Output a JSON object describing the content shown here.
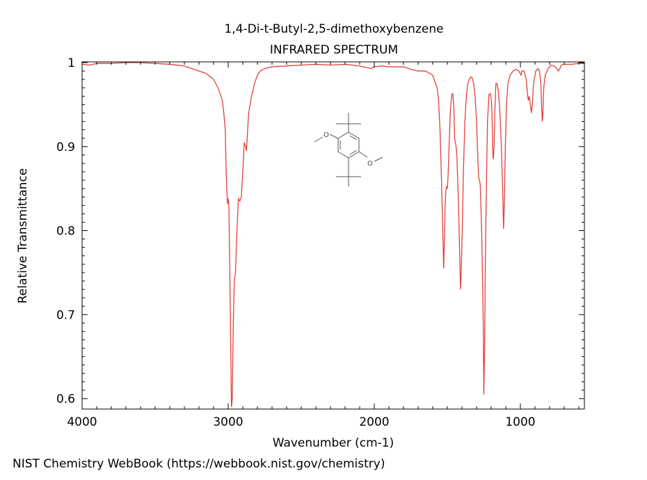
{
  "chart_data": {
    "type": "line",
    "title": "1,4-Di-t-Butyl-2,5-dimethoxybenzene",
    "subtitle": "INFRARED SPECTRUM",
    "xlabel": "Wavenumber (cm-1)",
    "ylabel": "Relative Transmittance",
    "xlim": [
      4000,
      550
    ],
    "ylim": [
      0.59,
      1.0
    ],
    "x_reversed": true,
    "grid": false,
    "line_color": "#e0403a",
    "x_ticks": [
      {
        "value": 4000,
        "label": "4000"
      },
      {
        "value": 3000,
        "label": "3000"
      },
      {
        "value": 2000,
        "label": "2000"
      },
      {
        "value": 1000,
        "label": "1000"
      }
    ],
    "y_ticks": [
      {
        "value": 0.6,
        "label": "0.6"
      },
      {
        "value": 0.7,
        "label": "0.7"
      },
      {
        "value": 0.8,
        "label": "0.8"
      },
      {
        "value": 0.9,
        "label": "0.9"
      },
      {
        "value": 1.0,
        "label": "1"
      }
    ],
    "series": [
      {
        "points": [
          [
            4000,
            0.998
          ],
          [
            3950,
            0.997
          ],
          [
            3900,
            0.999
          ],
          [
            3800,
            0.999
          ],
          [
            3700,
            1.0
          ],
          [
            3600,
            1.0
          ],
          [
            3500,
            0.999
          ],
          [
            3400,
            0.998
          ],
          [
            3300,
            0.996
          ],
          [
            3250,
            0.993
          ],
          [
            3200,
            0.99
          ],
          [
            3150,
            0.987
          ],
          [
            3100,
            0.98
          ],
          [
            3070,
            0.97
          ],
          [
            3040,
            0.955
          ],
          [
            3030,
            0.94
          ],
          [
            3020,
            0.92
          ],
          [
            3015,
            0.88
          ],
          [
            3010,
            0.85
          ],
          [
            3005,
            0.832
          ],
          [
            3000,
            0.838
          ],
          [
            2995,
            0.828
          ],
          [
            2985,
            0.7
          ],
          [
            2978,
            0.59
          ],
          [
            2972,
            0.6
          ],
          [
            2965,
            0.69
          ],
          [
            2958,
            0.74
          ],
          [
            2950,
            0.75
          ],
          [
            2940,
            0.8
          ],
          [
            2930,
            0.838
          ],
          [
            2920,
            0.835
          ],
          [
            2910,
            0.84
          ],
          [
            2900,
            0.87
          ],
          [
            2890,
            0.905
          ],
          [
            2880,
            0.9
          ],
          [
            2875,
            0.895
          ],
          [
            2860,
            0.94
          ],
          [
            2840,
            0.96
          ],
          [
            2820,
            0.975
          ],
          [
            2800,
            0.985
          ],
          [
            2780,
            0.99
          ],
          [
            2750,
            0.993
          ],
          [
            2700,
            0.995
          ],
          [
            2600,
            0.996
          ],
          [
            2500,
            0.997
          ],
          [
            2400,
            0.998
          ],
          [
            2300,
            0.997
          ],
          [
            2200,
            0.998
          ],
          [
            2100,
            0.996
          ],
          [
            2050,
            0.994
          ],
          [
            2020,
            0.993
          ],
          [
            2000,
            0.995
          ],
          [
            1950,
            0.996
          ],
          [
            1900,
            0.995
          ],
          [
            1800,
            0.995
          ],
          [
            1750,
            0.992
          ],
          [
            1700,
            0.99
          ],
          [
            1650,
            0.99
          ],
          [
            1600,
            0.985
          ],
          [
            1570,
            0.97
          ],
          [
            1560,
            0.955
          ],
          [
            1550,
            0.92
          ],
          [
            1540,
            0.86
          ],
          [
            1530,
            0.79
          ],
          [
            1525,
            0.755
          ],
          [
            1520,
            0.79
          ],
          [
            1515,
            0.83
          ],
          [
            1510,
            0.848
          ],
          [
            1505,
            0.852
          ],
          [
            1500,
            0.85
          ],
          [
            1495,
            0.865
          ],
          [
            1488,
            0.9
          ],
          [
            1480,
            0.94
          ],
          [
            1470,
            0.962
          ],
          [
            1462,
            0.963
          ],
          [
            1455,
            0.945
          ],
          [
            1450,
            0.91
          ],
          [
            1445,
            0.905
          ],
          [
            1440,
            0.9
          ],
          [
            1435,
            0.89
          ],
          [
            1425,
            0.84
          ],
          [
            1415,
            0.77
          ],
          [
            1410,
            0.73
          ],
          [
            1405,
            0.75
          ],
          [
            1398,
            0.8
          ],
          [
            1390,
            0.87
          ],
          [
            1380,
            0.93
          ],
          [
            1370,
            0.96
          ],
          [
            1360,
            0.975
          ],
          [
            1350,
            0.98
          ],
          [
            1340,
            0.983
          ],
          [
            1330,
            0.982
          ],
          [
            1320,
            0.975
          ],
          [
            1310,
            0.96
          ],
          [
            1300,
            0.93
          ],
          [
            1290,
            0.88
          ],
          [
            1285,
            0.862
          ],
          [
            1280,
            0.86
          ],
          [
            1275,
            0.855
          ],
          [
            1265,
            0.8
          ],
          [
            1255,
            0.7
          ],
          [
            1250,
            0.605
          ],
          [
            1245,
            0.66
          ],
          [
            1240,
            0.76
          ],
          [
            1232,
            0.86
          ],
          [
            1225,
            0.93
          ],
          [
            1215,
            0.962
          ],
          [
            1205,
            0.963
          ],
          [
            1198,
            0.955
          ],
          [
            1192,
            0.925
          ],
          [
            1188,
            0.89
          ],
          [
            1185,
            0.885
          ],
          [
            1180,
            0.9
          ],
          [
            1175,
            0.94
          ],
          [
            1168,
            0.975
          ],
          [
            1160,
            0.975
          ],
          [
            1150,
            0.965
          ],
          [
            1140,
            0.94
          ],
          [
            1130,
            0.9
          ],
          [
            1120,
            0.84
          ],
          [
            1115,
            0.802
          ],
          [
            1110,
            0.83
          ],
          [
            1103,
            0.9
          ],
          [
            1095,
            0.95
          ],
          [
            1085,
            0.975
          ],
          [
            1070,
            0.985
          ],
          [
            1050,
            0.99
          ],
          [
            1030,
            0.992
          ],
          [
            1010,
            0.99
          ],
          [
            995,
            0.985
          ],
          [
            990,
            0.99
          ],
          [
            975,
            0.99
          ],
          [
            960,
            0.98
          ],
          [
            950,
            0.96
          ],
          [
            945,
            0.955
          ],
          [
            940,
            0.96
          ],
          [
            935,
            0.955
          ],
          [
            925,
            0.94
          ],
          [
            918,
            0.95
          ],
          [
            910,
            0.975
          ],
          [
            895,
            0.99
          ],
          [
            880,
            0.993
          ],
          [
            870,
            0.99
          ],
          [
            860,
            0.975
          ],
          [
            855,
            0.95
          ],
          [
            850,
            0.93
          ],
          [
            847,
            0.935
          ],
          [
            840,
            0.97
          ],
          [
            830,
            0.985
          ],
          [
            810,
            0.993
          ],
          [
            790,
            0.997
          ],
          [
            760,
            0.995
          ],
          [
            740,
            0.99
          ],
          [
            730,
            0.993
          ],
          [
            720,
            0.997
          ],
          [
            700,
            0.998
          ],
          [
            650,
            0.998
          ],
          [
            600,
            0.999
          ],
          [
            550,
            0.999
          ]
        ]
      }
    ]
  },
  "footer": {
    "text": "NIST Chemistry WebBook (https://webbook.nist.gov/chemistry)"
  }
}
